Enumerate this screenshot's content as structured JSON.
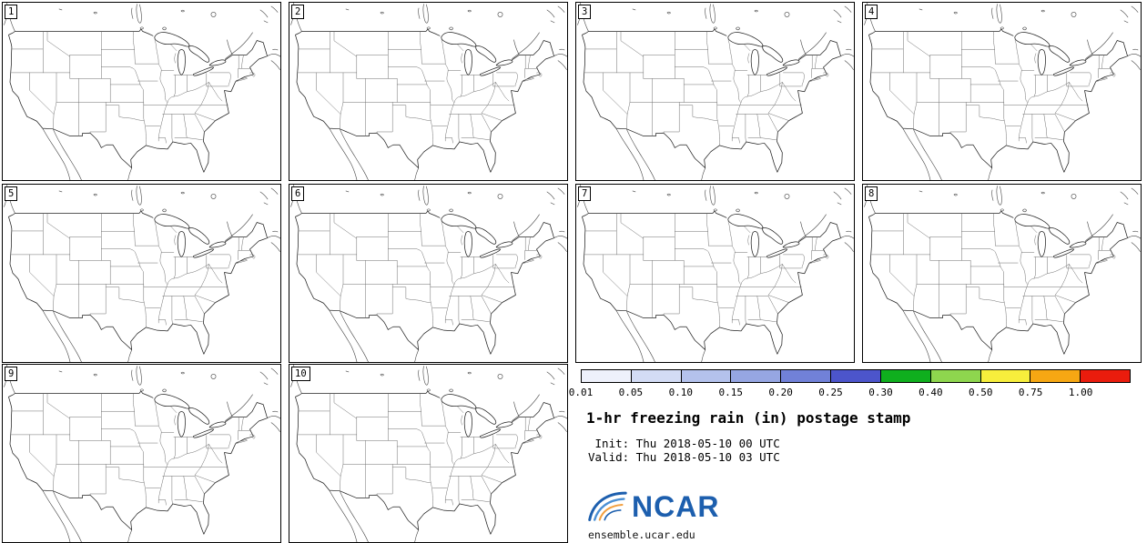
{
  "panels": [
    {
      "label": "1"
    },
    {
      "label": "2"
    },
    {
      "label": "3"
    },
    {
      "label": "4"
    },
    {
      "label": "5"
    },
    {
      "label": "6"
    },
    {
      "label": "7"
    },
    {
      "label": "8"
    },
    {
      "label": "9"
    },
    {
      "label": "10"
    }
  ],
  "legend": {
    "colorbar": {
      "ticks": [
        "0.01",
        "0.05",
        "0.10",
        "0.15",
        "0.20",
        "0.25",
        "0.30",
        "0.40",
        "0.50",
        "0.75",
        "1.00"
      ],
      "colors": [
        "#eef1fb",
        "#d3dcf5",
        "#b4c2ec",
        "#96a6e2",
        "#7181d8",
        "#4c55cb",
        "#0faf1e",
        "#8ed64e",
        "#f7ee3c",
        "#f6a713",
        "#ea1c0d"
      ]
    },
    "title": "1-hr freezing rain (in) postage stamp",
    "init_line": " Init: Thu 2018-05-10 00 UTC",
    "valid_line": "Valid: Thu 2018-05-10 03 UTC",
    "logo_text": "NCAR",
    "site_url": "ensemble.ucar.edu"
  }
}
